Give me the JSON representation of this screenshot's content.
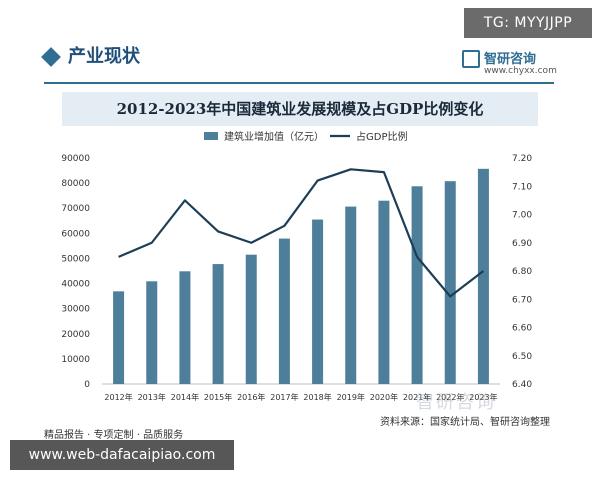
{
  "badge": "TG: MYYJJPP",
  "section_title": "产业现状",
  "logo": {
    "name": "智研咨询",
    "url": "www.chyxx.com"
  },
  "banner_url": "www.web-dafacaipiao.com",
  "footer": {
    "left": "精品报告 · 专项定制 · 品质服务",
    "source": "资料来源：国家统计局、智研咨询整理"
  },
  "watermark": "智研咨询",
  "colors": {
    "bar": "#4e7f9a",
    "line": "#1c3e57",
    "accent": "#2f6d93"
  },
  "chart_data": {
    "type": "bar",
    "title": "2012-2023年中国建筑业发展规模及占GDP比例变化",
    "categories": [
      "2012年",
      "2013年",
      "2014年",
      "2015年",
      "2016年",
      "2017年",
      "2018年",
      "2019年",
      "2020年",
      "2021年",
      "2022年",
      "2023年"
    ],
    "series": [
      {
        "name": "建筑业增加值（亿元）",
        "type": "bar",
        "axis": "left",
        "values": [
          36896,
          40897,
          44881,
          47761,
          51499,
          57906,
          65493,
          70648,
          72996,
          78741,
          80766,
          85691
        ]
      },
      {
        "name": "占GDP比例",
        "type": "line",
        "axis": "right",
        "values": [
          6.85,
          6.9,
          7.05,
          6.94,
          6.9,
          6.96,
          7.12,
          7.16,
          7.15,
          6.85,
          6.71,
          6.8
        ]
      }
    ],
    "y_left": {
      "min": 0,
      "max": 90000,
      "ticks": [
        "0",
        "10000",
        "20000",
        "30000",
        "40000",
        "50000",
        "60000",
        "70000",
        "80000",
        "90000"
      ]
    },
    "y_right": {
      "min": 6.4,
      "max": 7.2,
      "ticks": [
        "6.40",
        "6.50",
        "6.60",
        "6.70",
        "6.80",
        "6.90",
        "7.00",
        "7.10",
        "7.20"
      ]
    },
    "legend": "top",
    "grid": false
  }
}
